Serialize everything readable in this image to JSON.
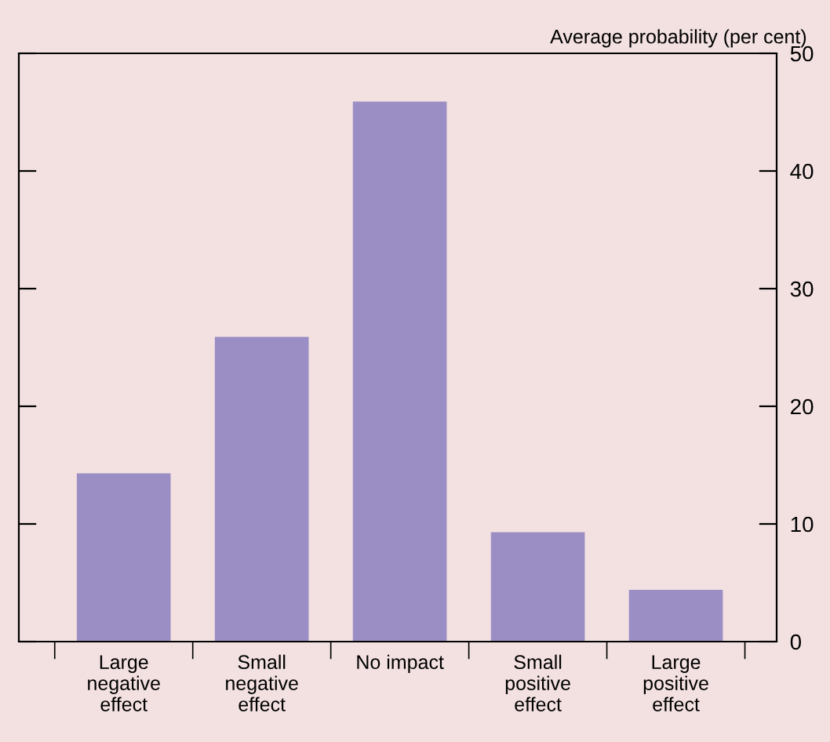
{
  "chart_data": {
    "type": "bar",
    "categories": [
      "Large\nnegative\neffect",
      "Small\nnegative\neffect",
      "No impact",
      "Small\npositive\neffect",
      "Large\npositive\neffect"
    ],
    "values": [
      14.3,
      25.9,
      45.9,
      9.3,
      4.4
    ],
    "color": "#9b8ec4",
    "ylabel": "Average probability (per cent)",
    "ylim": [
      0,
      50
    ],
    "yticks": [
      0,
      10,
      20,
      30,
      40,
      50
    ],
    "grid": false,
    "legend": false
  }
}
